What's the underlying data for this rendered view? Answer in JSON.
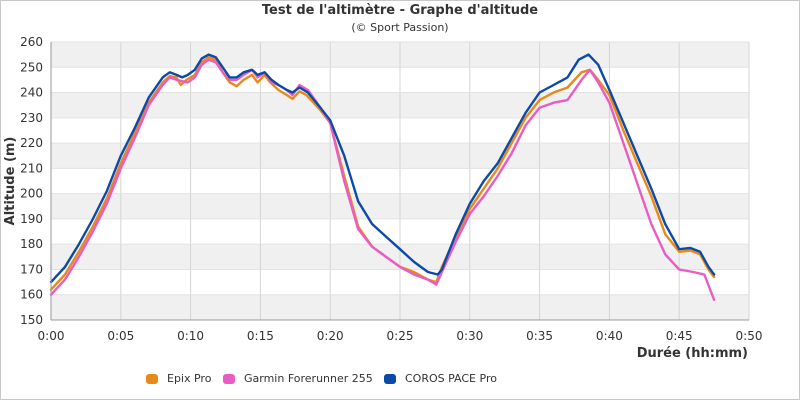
{
  "chart_data": {
    "type": "line",
    "title": "Test de l'altimètre - Graphe d'altitude",
    "subtitle": "(© Sport Passion)",
    "xlabel": "Durée (hh:mm)",
    "ylabel": "Altitude (m)",
    "x_unit": "minutes",
    "xlim": [
      0,
      50
    ],
    "ylim": [
      150,
      260
    ],
    "x_ticks": [
      {
        "value": 0,
        "label": "0:00"
      },
      {
        "value": 5,
        "label": "0:05"
      },
      {
        "value": 10,
        "label": "0:10"
      },
      {
        "value": 15,
        "label": "0:15"
      },
      {
        "value": 20,
        "label": "0:20"
      },
      {
        "value": 25,
        "label": "0:25"
      },
      {
        "value": 30,
        "label": "0:30"
      },
      {
        "value": 35,
        "label": "0:35"
      },
      {
        "value": 40,
        "label": "0:40"
      },
      {
        "value": 45,
        "label": "0:45"
      },
      {
        "value": 50,
        "label": "0:50"
      }
    ],
    "y_ticks": [
      150,
      160,
      170,
      180,
      190,
      200,
      210,
      220,
      230,
      240,
      250,
      260
    ],
    "grid": true,
    "legend_position": "bottom",
    "series": [
      {
        "name": "Epix Pro",
        "color": "#e8891a",
        "points": [
          [
            0,
            162
          ],
          [
            1,
            168
          ],
          [
            2,
            177
          ],
          [
            3,
            187
          ],
          [
            4,
            198
          ],
          [
            5,
            212
          ],
          [
            6,
            224
          ],
          [
            7,
            236
          ],
          [
            8,
            244
          ],
          [
            8.5,
            246.5
          ],
          [
            9,
            246
          ],
          [
            9.3,
            243
          ],
          [
            9.7,
            245
          ],
          [
            10.3,
            247
          ],
          [
            10.8,
            252
          ],
          [
            11.3,
            254
          ],
          [
            11.8,
            253
          ],
          [
            12.3,
            248
          ],
          [
            12.8,
            244
          ],
          [
            13.3,
            242.5
          ],
          [
            13.8,
            245
          ],
          [
            14.4,
            247
          ],
          [
            14.8,
            244
          ],
          [
            15.3,
            247
          ],
          [
            15.7,
            244
          ],
          [
            16.3,
            241
          ],
          [
            16.9,
            239
          ],
          [
            17.3,
            237.5
          ],
          [
            17.8,
            240.5
          ],
          [
            18.3,
            239
          ],
          [
            19.3,
            233
          ],
          [
            20,
            228
          ],
          [
            21,
            207
          ],
          [
            22,
            187
          ],
          [
            23,
            179
          ],
          [
            24,
            175
          ],
          [
            25,
            171
          ],
          [
            26,
            169
          ],
          [
            27,
            166
          ],
          [
            27.6,
            165
          ],
          [
            28,
            171
          ],
          [
            29,
            183
          ],
          [
            30,
            194
          ],
          [
            31,
            202
          ],
          [
            32,
            210
          ],
          [
            33,
            220
          ],
          [
            34,
            230
          ],
          [
            35,
            237
          ],
          [
            36,
            240
          ],
          [
            37,
            242
          ],
          [
            38,
            248
          ],
          [
            38.6,
            249
          ],
          [
            39.2,
            245
          ],
          [
            40,
            239
          ],
          [
            41,
            225
          ],
          [
            42,
            212
          ],
          [
            43,
            199
          ],
          [
            44,
            184
          ],
          [
            45,
            177
          ],
          [
            45.8,
            177.5
          ],
          [
            46.5,
            176
          ],
          [
            47.1,
            170
          ],
          [
            47.5,
            167
          ]
        ]
      },
      {
        "name": "Garmin Forerunner 255",
        "color": "#e85dc4",
        "points": [
          [
            0,
            160
          ],
          [
            1,
            166
          ],
          [
            2,
            175
          ],
          [
            3,
            185
          ],
          [
            4,
            196
          ],
          [
            5,
            210
          ],
          [
            6,
            222
          ],
          [
            7,
            235
          ],
          [
            8,
            243
          ],
          [
            8.5,
            246
          ],
          [
            9,
            245
          ],
          [
            9.4,
            244.5
          ],
          [
            9.8,
            244
          ],
          [
            10.3,
            246
          ],
          [
            10.8,
            251
          ],
          [
            11.3,
            253
          ],
          [
            11.8,
            252
          ],
          [
            12.3,
            248
          ],
          [
            12.8,
            245
          ],
          [
            13.3,
            245
          ],
          [
            13.8,
            247
          ],
          [
            14.4,
            249
          ],
          [
            14.8,
            246
          ],
          [
            15.3,
            248
          ],
          [
            15.8,
            244
          ],
          [
            16.3,
            243
          ],
          [
            16.9,
            241
          ],
          [
            17.3,
            239
          ],
          [
            17.8,
            243
          ],
          [
            18.4,
            241
          ],
          [
            19.3,
            234
          ],
          [
            20,
            228
          ],
          [
            21,
            205
          ],
          [
            22,
            186
          ],
          [
            23,
            179
          ],
          [
            24,
            175
          ],
          [
            25,
            171
          ],
          [
            26,
            168
          ],
          [
            27,
            166
          ],
          [
            27.6,
            164
          ],
          [
            28,
            169
          ],
          [
            29,
            181
          ],
          [
            30,
            192
          ],
          [
            31,
            199
          ],
          [
            32,
            207
          ],
          [
            33,
            216
          ],
          [
            34,
            227
          ],
          [
            35,
            234
          ],
          [
            36,
            236
          ],
          [
            37,
            237
          ],
          [
            38,
            245
          ],
          [
            38.6,
            249
          ],
          [
            39.2,
            244
          ],
          [
            40,
            236
          ],
          [
            41,
            220
          ],
          [
            42,
            204
          ],
          [
            43,
            188
          ],
          [
            44,
            176
          ],
          [
            45,
            170
          ],
          [
            46,
            169
          ],
          [
            46.8,
            168
          ],
          [
            47.5,
            158
          ]
        ]
      },
      {
        "name": "COROS PACE Pro",
        "color": "#0b4aa8",
        "points": [
          [
            0,
            165
          ],
          [
            1,
            171
          ],
          [
            2,
            180
          ],
          [
            3,
            190
          ],
          [
            4,
            201
          ],
          [
            5,
            215
          ],
          [
            6,
            226
          ],
          [
            7,
            238
          ],
          [
            8,
            246
          ],
          [
            8.5,
            248
          ],
          [
            9,
            247
          ],
          [
            9.4,
            246
          ],
          [
            9.8,
            247
          ],
          [
            10.3,
            249
          ],
          [
            10.8,
            253.5
          ],
          [
            11.3,
            255
          ],
          [
            11.8,
            254
          ],
          [
            12.3,
            250
          ],
          [
            12.8,
            246
          ],
          [
            13.3,
            246
          ],
          [
            13.8,
            248
          ],
          [
            14.4,
            249
          ],
          [
            14.8,
            247
          ],
          [
            15.3,
            248
          ],
          [
            15.8,
            245
          ],
          [
            16.3,
            243
          ],
          [
            16.9,
            241
          ],
          [
            17.3,
            240
          ],
          [
            17.8,
            242
          ],
          [
            18.4,
            240
          ],
          [
            19.3,
            234
          ],
          [
            20,
            229
          ],
          [
            21,
            215
          ],
          [
            22,
            197
          ],
          [
            23,
            188
          ],
          [
            24,
            183
          ],
          [
            25,
            178
          ],
          [
            26,
            173
          ],
          [
            27,
            169
          ],
          [
            27.7,
            168
          ],
          [
            28,
            170
          ],
          [
            29,
            184
          ],
          [
            30,
            196
          ],
          [
            31,
            205
          ],
          [
            32,
            212
          ],
          [
            33,
            222
          ],
          [
            34,
            232
          ],
          [
            35,
            240
          ],
          [
            36,
            243
          ],
          [
            37,
            246
          ],
          [
            37.8,
            253
          ],
          [
            38.5,
            255
          ],
          [
            39.2,
            251
          ],
          [
            40,
            241
          ],
          [
            41,
            228
          ],
          [
            42,
            215
          ],
          [
            43,
            202
          ],
          [
            44,
            188
          ],
          [
            45,
            178
          ],
          [
            45.8,
            178.5
          ],
          [
            46.5,
            177
          ],
          [
            47.1,
            171
          ],
          [
            47.5,
            168
          ]
        ]
      }
    ]
  }
}
